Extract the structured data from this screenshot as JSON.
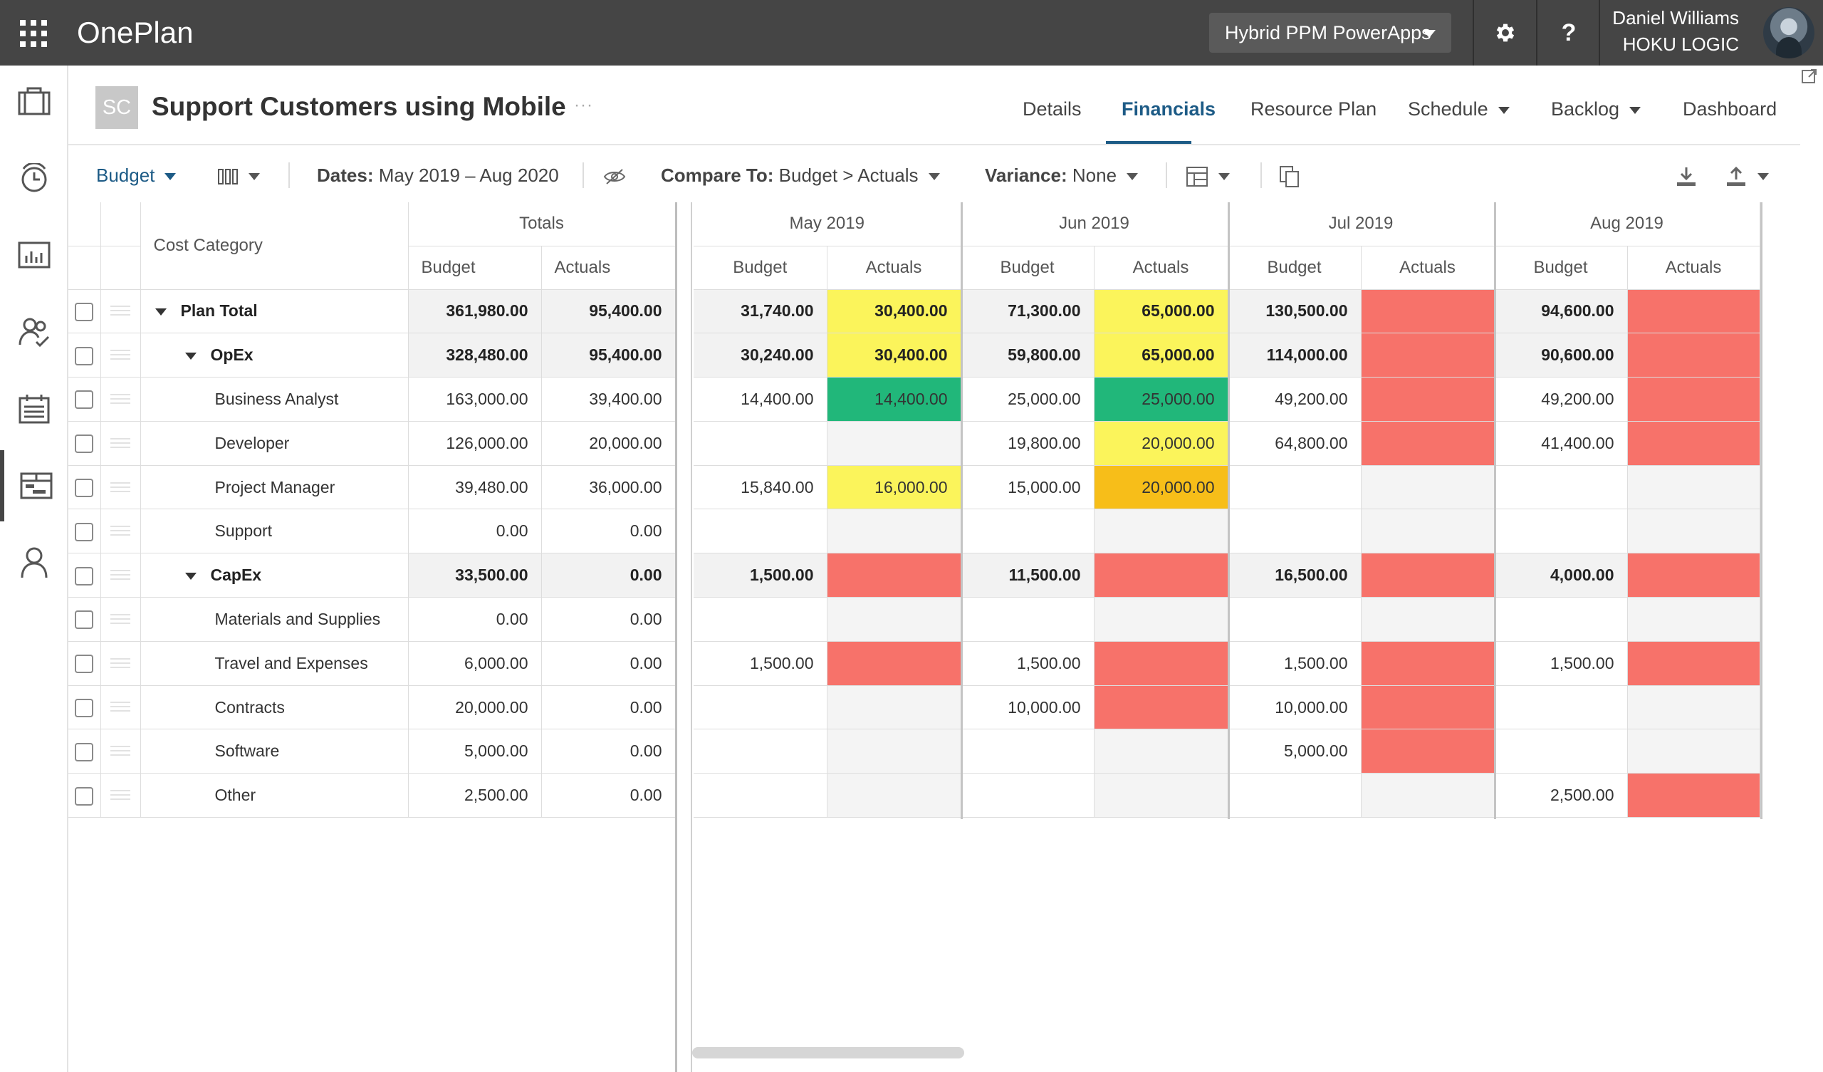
{
  "app": {
    "title": "OnePlan"
  },
  "topbar": {
    "environment": "Hybrid PPM PowerApps",
    "user_name": "Daniel Williams",
    "user_org": "HOKU LOGIC",
    "settings_icon": "gear-icon",
    "help_label": "?"
  },
  "rail": [
    "portfolio-icon",
    "time-icon",
    "reports-icon",
    "resources-icon",
    "calendar-icon",
    "plans-icon",
    "person-icon"
  ],
  "project": {
    "initials": "SC",
    "title": "Support Customers using Mobile",
    "more": "···"
  },
  "tabs": [
    {
      "label": "Details"
    },
    {
      "label": "Financials"
    },
    {
      "label": "Resource Plan"
    },
    {
      "label": "Schedule"
    },
    {
      "label": "Backlog"
    },
    {
      "label": "Dashboard"
    }
  ],
  "toolbar": {
    "budget": "Budget",
    "dates_label": "Dates:",
    "dates_value": "May 2019 – Aug 2020",
    "compare_label": "Compare To:",
    "compare_value": "Budget > Actuals",
    "variance_label": "Variance:",
    "variance_value": "None"
  },
  "grid": {
    "cost_category_header": "Cost Category",
    "totals_header": "Totals",
    "budget_header": "Budget",
    "actuals_header": "Actuals",
    "months": [
      "May 2019",
      "Jun 2019",
      "Jul 2019",
      "Aug 2019"
    ],
    "rows": [
      {
        "name": "Plan Total",
        "level": 0,
        "bold": true,
        "tb": "361,980.00",
        "ta": "95,400.00",
        "m": [
          {
            "b": "31,740.00",
            "a": "30,400.00",
            "s": "yellow"
          },
          {
            "b": "71,300.00",
            "a": "65,000.00",
            "s": "yellow"
          },
          {
            "b": "130,500.00",
            "a": "",
            "s": "red"
          },
          {
            "b": "94,600.00",
            "a": "",
            "s": "red"
          }
        ]
      },
      {
        "name": "OpEx",
        "level": 1,
        "bold": true,
        "tb": "328,480.00",
        "ta": "95,400.00",
        "m": [
          {
            "b": "30,240.00",
            "a": "30,400.00",
            "s": "yellow"
          },
          {
            "b": "59,800.00",
            "a": "65,000.00",
            "s": "yellow"
          },
          {
            "b": "114,000.00",
            "a": "",
            "s": "red"
          },
          {
            "b": "90,600.00",
            "a": "",
            "s": "red"
          }
        ]
      },
      {
        "name": "Business Analyst",
        "level": 2,
        "bold": false,
        "tb": "163,000.00",
        "ta": "39,400.00",
        "m": [
          {
            "b": "14,400.00",
            "a": "14,400.00",
            "s": "green"
          },
          {
            "b": "25,000.00",
            "a": "25,000.00",
            "s": "green"
          },
          {
            "b": "49,200.00",
            "a": "",
            "s": "red"
          },
          {
            "b": "49,200.00",
            "a": "",
            "s": "red"
          }
        ]
      },
      {
        "name": "Developer",
        "level": 2,
        "bold": false,
        "tb": "126,000.00",
        "ta": "20,000.00",
        "m": [
          {
            "b": "",
            "a": "",
            "s": ""
          },
          {
            "b": "19,800.00",
            "a": "20,000.00",
            "s": "yellow"
          },
          {
            "b": "64,800.00",
            "a": "",
            "s": "red"
          },
          {
            "b": "41,400.00",
            "a": "",
            "s": "red"
          }
        ]
      },
      {
        "name": "Project Manager",
        "level": 2,
        "bold": false,
        "tb": "39,480.00",
        "ta": "36,000.00",
        "m": [
          {
            "b": "15,840.00",
            "a": "16,000.00",
            "s": "yellow"
          },
          {
            "b": "15,000.00",
            "a": "20,000.00",
            "s": "orange"
          },
          {
            "b": "",
            "a": "",
            "s": ""
          },
          {
            "b": "",
            "a": "",
            "s": ""
          }
        ]
      },
      {
        "name": "Support",
        "level": 2,
        "bold": false,
        "tb": "0.00",
        "ta": "0.00",
        "m": [
          {
            "b": "",
            "a": "",
            "s": ""
          },
          {
            "b": "",
            "a": "",
            "s": ""
          },
          {
            "b": "",
            "a": "",
            "s": ""
          },
          {
            "b": "",
            "a": "",
            "s": ""
          }
        ]
      },
      {
        "name": "CapEx",
        "level": 1,
        "bold": true,
        "tb": "33,500.00",
        "ta": "0.00",
        "m": [
          {
            "b": "1,500.00",
            "a": "",
            "s": "red"
          },
          {
            "b": "11,500.00",
            "a": "",
            "s": "red"
          },
          {
            "b": "16,500.00",
            "a": "",
            "s": "red"
          },
          {
            "b": "4,000.00",
            "a": "",
            "s": "red"
          }
        ]
      },
      {
        "name": "Materials and Supplies",
        "level": 2,
        "bold": false,
        "tb": "0.00",
        "ta": "0.00",
        "m": [
          {
            "b": "",
            "a": "",
            "s": ""
          },
          {
            "b": "",
            "a": "",
            "s": ""
          },
          {
            "b": "",
            "a": "",
            "s": ""
          },
          {
            "b": "",
            "a": "",
            "s": ""
          }
        ]
      },
      {
        "name": "Travel and Expenses",
        "level": 2,
        "bold": false,
        "tb": "6,000.00",
        "ta": "0.00",
        "m": [
          {
            "b": "1,500.00",
            "a": "",
            "s": "red"
          },
          {
            "b": "1,500.00",
            "a": "",
            "s": "red"
          },
          {
            "b": "1,500.00",
            "a": "",
            "s": "red"
          },
          {
            "b": "1,500.00",
            "a": "",
            "s": "red"
          }
        ]
      },
      {
        "name": "Contracts",
        "level": 2,
        "bold": false,
        "tb": "20,000.00",
        "ta": "0.00",
        "m": [
          {
            "b": "",
            "a": "",
            "s": ""
          },
          {
            "b": "10,000.00",
            "a": "",
            "s": "red"
          },
          {
            "b": "10,000.00",
            "a": "",
            "s": "red"
          },
          {
            "b": "",
            "a": "",
            "s": ""
          }
        ]
      },
      {
        "name": "Software",
        "level": 2,
        "bold": false,
        "tb": "5,000.00",
        "ta": "0.00",
        "m": [
          {
            "b": "",
            "a": "",
            "s": ""
          },
          {
            "b": "",
            "a": "",
            "s": ""
          },
          {
            "b": "5,000.00",
            "a": "",
            "s": "red"
          },
          {
            "b": "",
            "a": "",
            "s": ""
          }
        ]
      },
      {
        "name": "Other",
        "level": 2,
        "bold": false,
        "tb": "2,500.00",
        "ta": "0.00",
        "m": [
          {
            "b": "",
            "a": "",
            "s": ""
          },
          {
            "b": "",
            "a": "",
            "s": ""
          },
          {
            "b": "",
            "a": "",
            "s": ""
          },
          {
            "b": "2,500.00",
            "a": "",
            "s": "red"
          }
        ]
      }
    ]
  },
  "colors": {
    "topbar": "#454545",
    "accent": "#1d5b86",
    "yellow": "#fbf45b",
    "green": "#21b77a",
    "orange": "#f7be19",
    "red": "#f7726a"
  }
}
